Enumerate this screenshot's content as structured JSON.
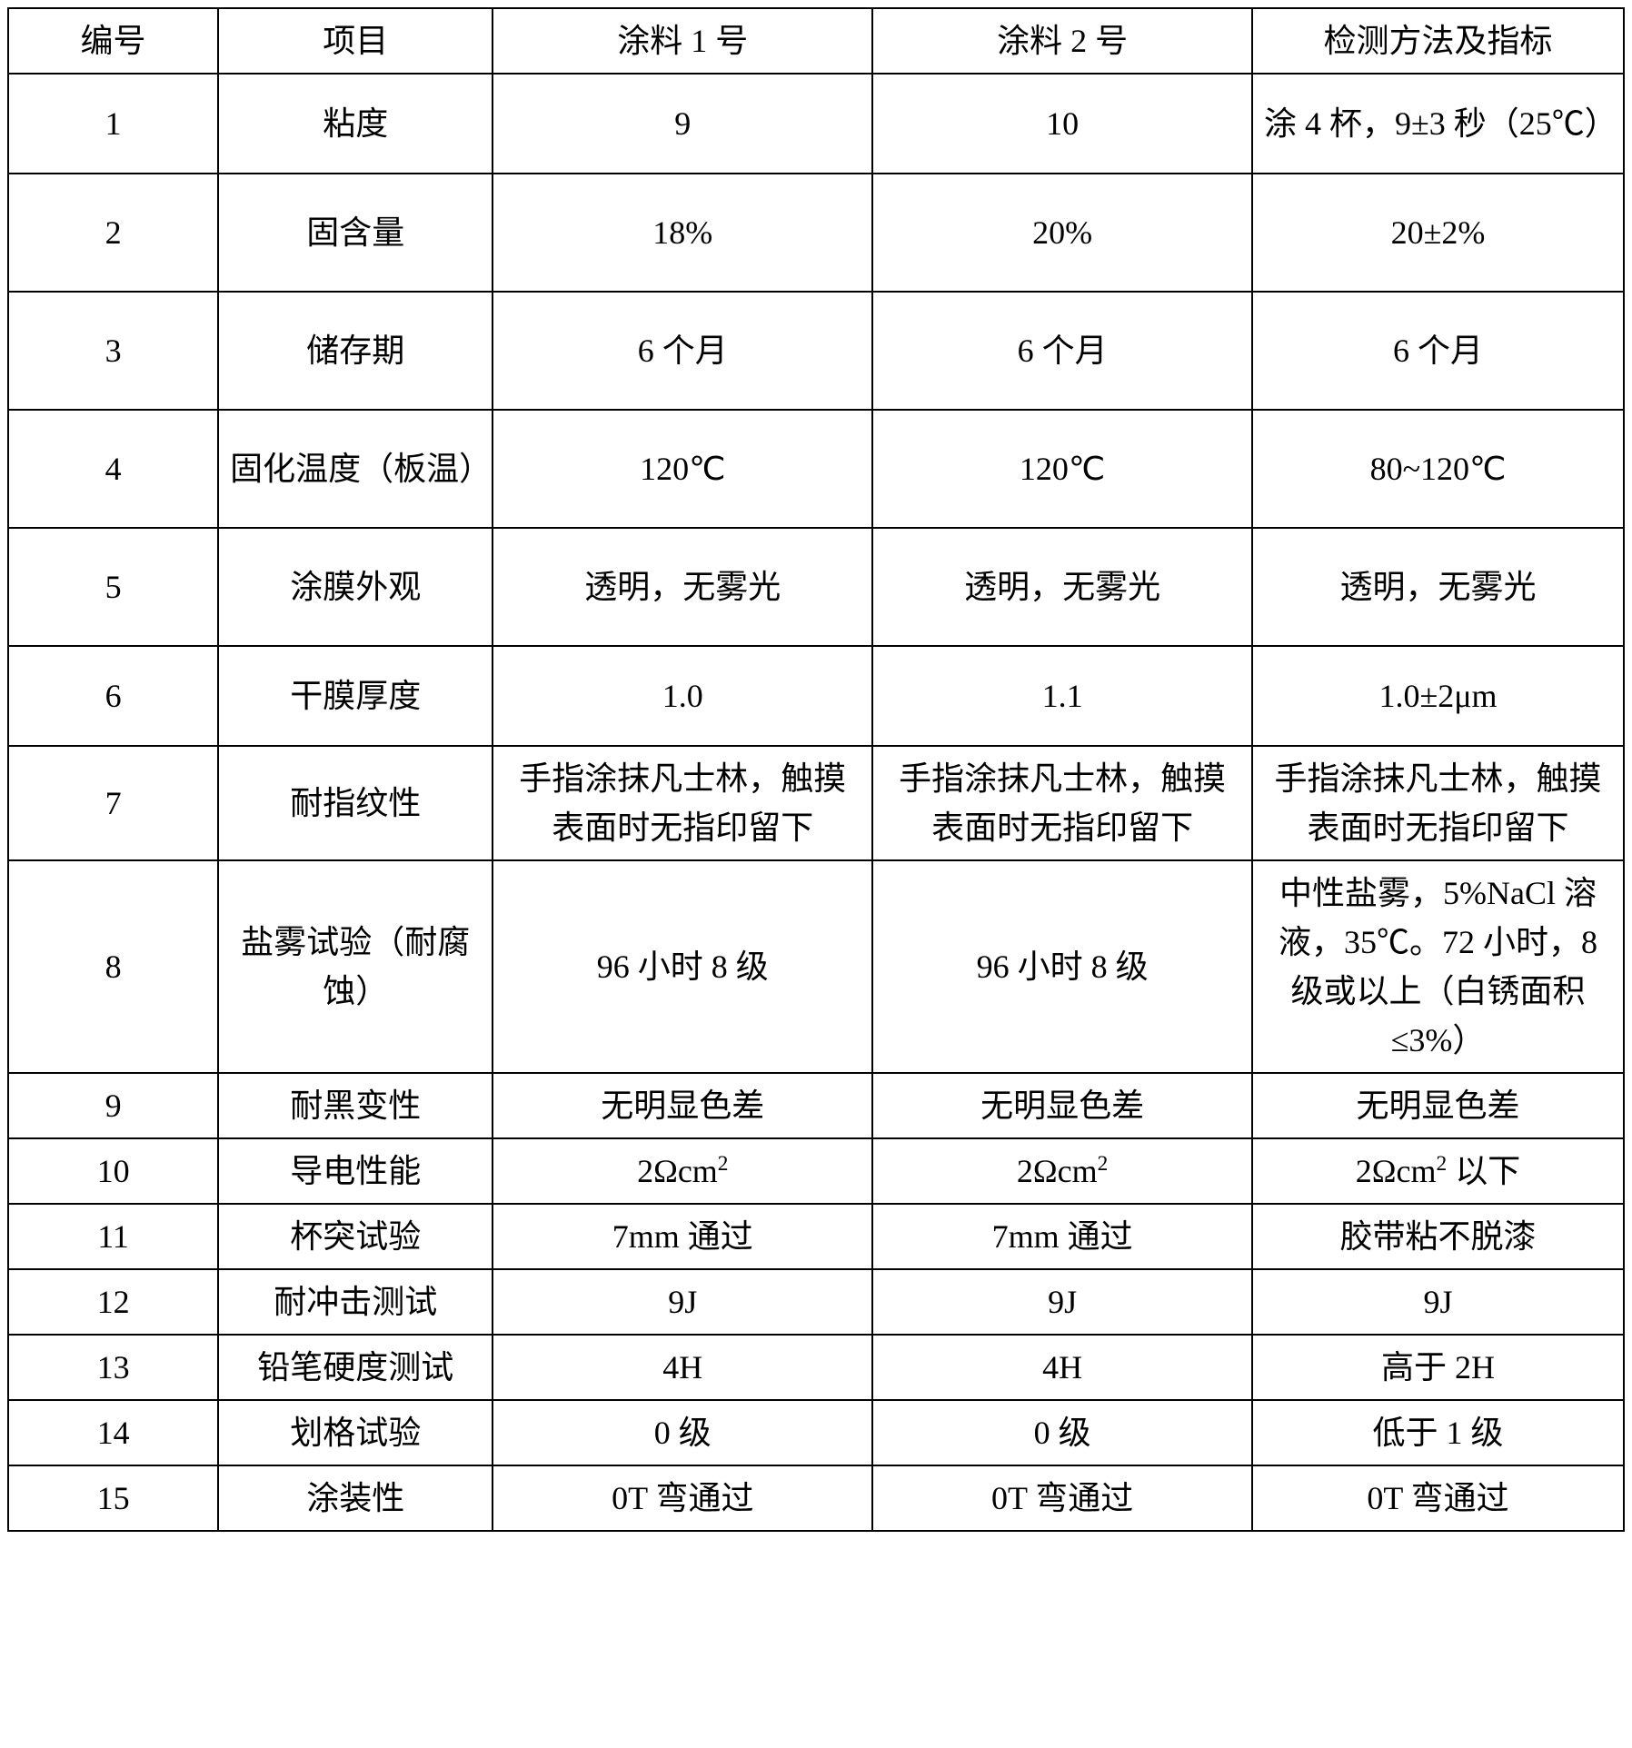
{
  "table": {
    "columns": [
      "编号",
      "项目",
      "涂料 1 号",
      "涂料 2 号",
      "检测方法及指标"
    ],
    "col_widths_pct": [
      13,
      17,
      23.5,
      23.5,
      23
    ],
    "border_color": "#000000",
    "background_color": "#ffffff",
    "text_color": "#000000",
    "font_family": "SimSun",
    "font_size_pt": 36,
    "rows": [
      {
        "id": "1",
        "project": "粘度",
        "coating1": "9",
        "coating2": "10",
        "method": "涂 4 杯，9±3 秒（25℃）",
        "row_height": "tall-row-2"
      },
      {
        "id": "2",
        "project": "固含量",
        "coating1": "18%",
        "coating2": "20%",
        "method": "20±2%",
        "row_height": "tall-row"
      },
      {
        "id": "3",
        "project": "储存期",
        "coating1": "6 个月",
        "coating2": "6 个月",
        "method": "6 个月",
        "row_height": "tall-row"
      },
      {
        "id": "4",
        "project": "固化温度（板温）",
        "coating1": "120℃",
        "coating2": "120℃",
        "method": "80~120℃",
        "row_height": "tall-row"
      },
      {
        "id": "5",
        "project": "涂膜外观",
        "coating1": "透明，无雾光",
        "coating2": "透明，无雾光",
        "method": "透明，无雾光",
        "row_height": "tall-row"
      },
      {
        "id": "6",
        "project": "干膜厚度",
        "coating1": "1.0",
        "coating2": "1.1",
        "method": "1.0±2μm",
        "row_height": "tall-row-2"
      },
      {
        "id": "7",
        "project": "耐指纹性",
        "coating1": "手指涂抹凡士林，触摸表面时无指印留下",
        "coating2": "手指涂抹凡士林，触摸表面时无指印留下",
        "method": "手指涂抹凡士林，触摸表面时无指印留下",
        "row_height": ""
      },
      {
        "id": "8",
        "project": "盐雾试验（耐腐蚀）",
        "coating1": "96 小时 8 级",
        "coating2": "96 小时 8 级",
        "method": "中性盐雾，5%NaCl 溶液，35℃。72 小时，8 级或以上（白锈面积≤3%）",
        "row_height": ""
      },
      {
        "id": "9",
        "project": "耐黑变性",
        "coating1": "无明显色差",
        "coating2": "无明显色差",
        "method": "无明显色差",
        "row_height": ""
      },
      {
        "id": "10",
        "project": "导电性能",
        "coating1": "2Ωcm²",
        "coating2": "2Ωcm²",
        "method": "2Ωcm² 以下",
        "row_height": "",
        "has_sup": true
      },
      {
        "id": "11",
        "project": "杯突试验",
        "coating1": "7mm 通过",
        "coating2": "7mm 通过",
        "method": "胶带粘不脱漆",
        "row_height": ""
      },
      {
        "id": "12",
        "project": "耐冲击测试",
        "coating1": "9J",
        "coating2": "9J",
        "method": "9J",
        "row_height": ""
      },
      {
        "id": "13",
        "project": "铅笔硬度测试",
        "coating1": "4H",
        "coating2": "4H",
        "method": "高于 2H",
        "row_height": ""
      },
      {
        "id": "14",
        "project": "划格试验",
        "coating1": "0 级",
        "coating2": "0 级",
        "method": "低于 1 级",
        "row_height": ""
      },
      {
        "id": "15",
        "project": "涂装性",
        "coating1": "0T 弯通过",
        "coating2": "0T 弯通过",
        "method": "0T 弯通过",
        "row_height": ""
      }
    ]
  }
}
